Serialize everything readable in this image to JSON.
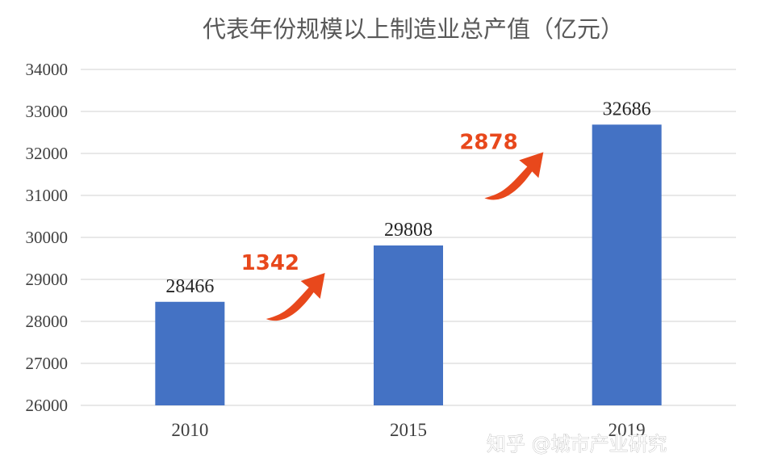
{
  "chart_data": {
    "type": "bar",
    "title": "代表年份规模以上制造业总产值（亿元）",
    "categories": [
      "2010",
      "2015",
      "2019"
    ],
    "values": [
      28466,
      29808,
      32686
    ],
    "ylim": [
      26000,
      34000
    ],
    "yticks": [
      "26000",
      "27000",
      "28000",
      "29000",
      "30000",
      "31000",
      "32000",
      "33000",
      "34000"
    ],
    "grid": true,
    "bar_color": "#4472c4",
    "annotations": [
      {
        "text": "1342",
        "from": "2010",
        "to": "2015",
        "color": "#e8481c"
      },
      {
        "text": "2878",
        "from": "2015",
        "to": "2019",
        "color": "#e8481c"
      }
    ]
  },
  "watermark": "知乎 @城市产业研究"
}
